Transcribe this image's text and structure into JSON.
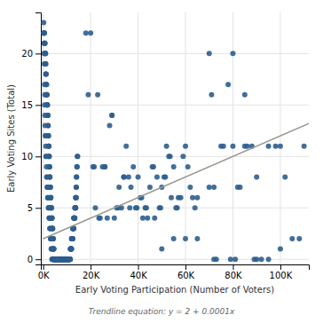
{
  "chart_data": {
    "type": "scatter",
    "xlabel": "Early Voting Participation (Number of Voters)",
    "ylabel": "Early Voting Sites (Total)",
    "annotation": "Trendline equation: y = 2 + 0.0001x",
    "xlim": [
      -1000,
      112000
    ],
    "ylim": [
      -0.5,
      24
    ],
    "xticks": [
      {
        "value": 0,
        "label": "0K"
      },
      {
        "value": 20000,
        "label": "20K"
      },
      {
        "value": 40000,
        "label": "40K"
      },
      {
        "value": 60000,
        "label": "60K"
      },
      {
        "value": 80000,
        "label": "80K"
      },
      {
        "value": 100000,
        "label": "100K"
      }
    ],
    "yticks": [
      0,
      5,
      10,
      15,
      20
    ],
    "grid": true,
    "series": [
      {
        "type": "scatter",
        "color": "#2e5e8e",
        "x": [
          300,
          400,
          500,
          500,
          600,
          700,
          700,
          800,
          800,
          900,
          900,
          1000,
          1000,
          1100,
          1100,
          1200,
          1200,
          1300,
          1300,
          1400,
          1400,
          1500,
          1500,
          1600,
          1600,
          1700,
          1700,
          1800,
          1800,
          1900,
          1900,
          2000,
          2000,
          2100,
          2100,
          2200,
          2200,
          2300,
          2300,
          2400,
          2400,
          2500,
          2500,
          2600,
          2600,
          2700,
          2700,
          2800,
          2800,
          2900,
          2900,
          3000,
          3000,
          3100,
          3100,
          3200,
          3200,
          3300,
          3300,
          3400,
          3400,
          3500,
          3500,
          3600,
          3600,
          3700,
          3700,
          3800,
          3800,
          3900,
          3900,
          4000,
          4000,
          4100,
          4100,
          4200,
          4200,
          4300,
          4300,
          4400,
          4400,
          4500,
          4500,
          4600,
          4600,
          4700,
          4700,
          4800,
          4800,
          4900,
          4900,
          5000,
          5000,
          5100,
          5100,
          5200,
          5200,
          5300,
          5300,
          5400,
          5400,
          5500,
          5500,
          5600,
          5600,
          5700,
          5700,
          5800,
          5800,
          5900,
          5900,
          6000,
          6000,
          6100,
          6100,
          6200,
          6200,
          6300,
          6300,
          6400,
          6400,
          6500,
          6500,
          6600,
          6600,
          6700,
          6700,
          6800,
          6800,
          6900,
          6900,
          7000,
          7000,
          7100,
          7100,
          7200,
          7200,
          7300,
          7300,
          7400,
          7400,
          7500,
          7500,
          7600,
          7600,
          7700,
          7700,
          7800,
          7800,
          7900,
          7900,
          8000,
          8000,
          8100,
          8100,
          8200,
          8200,
          8300,
          8300,
          8400,
          8400,
          8500,
          8500,
          8600,
          8600,
          8700,
          8700,
          8800,
          8800,
          8900,
          8900,
          9000,
          9000,
          9100,
          9100,
          9200,
          9200,
          9300,
          9300,
          9400,
          9400,
          9500,
          9500,
          9600,
          9600,
          9700,
          9700,
          9800,
          9800,
          9900,
          9900,
          10000,
          10000,
          10100,
          10100,
          10200,
          10200,
          10300,
          10300,
          10400,
          10400,
          10500,
          10500,
          10600,
          10600,
          10700,
          10700,
          10800,
          10800,
          10900,
          10900,
          11000,
          11000,
          11100,
          11100,
          11200,
          11200,
          11300,
          11300,
          11400,
          11400,
          11500,
          11500,
          11600,
          11600,
          11700,
          11700,
          11800,
          11800,
          11900,
          11900,
          12000,
          12000,
          12100,
          12100,
          12200,
          12200,
          12300,
          12300,
          12400,
          12400,
          12500,
          12500,
          12600,
          12600,
          12700,
          12700,
          12800,
          12800,
          12900,
          12900,
          13000,
          13000,
          13100,
          13100,
          13200,
          13200,
          13300,
          13300,
          13400,
          13400,
          13500,
          13500,
          13600,
          13600,
          13700,
          13700,
          13800,
          13800,
          13900,
          13900,
          14000,
          14000,
          14100,
          14200,
          14300,
          14400,
          14500,
          200,
          300,
          400,
          500,
          400,
          500,
          600,
          700,
          600,
          700,
          800,
          900,
          1000,
          1100,
          1200,
          1300,
          1400,
          1500,
          1600,
          1700,
          1800,
          1900,
          2000,
          2100,
          2200,
          2300,
          2400,
          2500,
          2600,
          2700,
          2800,
          2900,
          3000,
          3100,
          3200,
          3300,
          3400,
          3500,
          3600,
          3700,
          3800,
          3900,
          4000,
          4100,
          4200,
          4300,
          4400,
          4500,
          4600,
          4700,
          4800,
          4900,
          5000,
          5100,
          5200,
          5300,
          5400,
          5500,
          5600,
          5700,
          18000,
          20000,
          21000,
          22000,
          23000,
          24000,
          25000,
          26000,
          27000,
          28000,
          29000,
          30000,
          31000,
          32000,
          33000,
          34000,
          35000,
          36000,
          37000,
          38000,
          39000,
          40000,
          41000,
          42000,
          43000,
          44000,
          45000,
          46000,
          47000,
          48000,
          49000,
          50000,
          51000,
          52000,
          53000,
          54000,
          55000,
          56000,
          57000,
          58000,
          59000,
          60000,
          61000,
          62000,
          63000,
          64000,
          65000,
          19000,
          21500,
          23500,
          26000,
          29000,
          31500,
          34000,
          36500,
          39500,
          41500,
          43500,
          46500,
          49500,
          51500,
          53500,
          56500,
          70000,
          72000,
          75000,
          78000,
          80000,
          82000,
          85000,
          88000,
          90000,
          92000,
          95000,
          98000,
          100000,
          102000,
          105000,
          108000,
          110000,
          71000,
          73000,
          76000,
          79000,
          81000,
          83000,
          86000,
          89000,
          70000,
          72000,
          80000,
          85000,
          90000,
          95000,
          100000,
          50000,
          55000,
          60000,
          65000
        ],
        "values": [
          22,
          22,
          22,
          21,
          21,
          21,
          21,
          20,
          20,
          20,
          20,
          20,
          19,
          19,
          18,
          18,
          18,
          17,
          17,
          17,
          16,
          16,
          16,
          16,
          15,
          15,
          15,
          15,
          14,
          14,
          14,
          14,
          13,
          13,
          12,
          12,
          12,
          11,
          11,
          11,
          10,
          10,
          10,
          9,
          9,
          9,
          8,
          8,
          8,
          7,
          7,
          7,
          7,
          6,
          6,
          6,
          6,
          5,
          5,
          5,
          5,
          5,
          4,
          4,
          4,
          4,
          4,
          3,
          3,
          3,
          3,
          3,
          2,
          2,
          2,
          2,
          2,
          1,
          1,
          1,
          1,
          1,
          0,
          0,
          0,
          0,
          0,
          0,
          0,
          0,
          0,
          0,
          0,
          0,
          0,
          0,
          0,
          0,
          0,
          0,
          0,
          0,
          0,
          0,
          0,
          0,
          0,
          0,
          0,
          0,
          0,
          0,
          0,
          0,
          0,
          0,
          0,
          0,
          0,
          0,
          0,
          0,
          0,
          0,
          0,
          0,
          0,
          0,
          0,
          0,
          0,
          0,
          0,
          0,
          0,
          0,
          0,
          0,
          0,
          0,
          0,
          0,
          0,
          0,
          0,
          0,
          0,
          0,
          0,
          0,
          0,
          0,
          0,
          0,
          0,
          0,
          0,
          0,
          0,
          0,
          0,
          0,
          0,
          0,
          0,
          0,
          0,
          0,
          0,
          0,
          0,
          0,
          0,
          0,
          0,
          0,
          0,
          0,
          0,
          0,
          0,
          0,
          0,
          0,
          0,
          0,
          0,
          0,
          0,
          0,
          0,
          0,
          0,
          0,
          0,
          0,
          0,
          0,
          0,
          0,
          0,
          0,
          0,
          0,
          0,
          0,
          0,
          0,
          0,
          0,
          0,
          0,
          0,
          0,
          0,
          0,
          0,
          0,
          0,
          0,
          0,
          1,
          1,
          1,
          1,
          1,
          1,
          1,
          1,
          1,
          1,
          2,
          2,
          2,
          2,
          2,
          2,
          2,
          2,
          2,
          2,
          3,
          3,
          3,
          3,
          3,
          3,
          3,
          3,
          3,
          4,
          4,
          4,
          4,
          4,
          4,
          4,
          4,
          4,
          5,
          5,
          5,
          5,
          5,
          5,
          5,
          6,
          6,
          6,
          6,
          7,
          7,
          8,
          8,
          9,
          9,
          10,
          10,
          23,
          22,
          22,
          21,
          20,
          19,
          17,
          16,
          15,
          14,
          13,
          12,
          12,
          11,
          10,
          10,
          9,
          8,
          8,
          7,
          7,
          6,
          6,
          6,
          5,
          5,
          5,
          4,
          4,
          4,
          3,
          3,
          3,
          2,
          2,
          2,
          1,
          1,
          1,
          0,
          0,
          0,
          0,
          0,
          0,
          0,
          0,
          0,
          0,
          0,
          0,
          0,
          0,
          0,
          0,
          0,
          0,
          0,
          0,
          0,
          22,
          22,
          9,
          5,
          16,
          4,
          9,
          9,
          4,
          13,
          14,
          4,
          5,
          7,
          5,
          8,
          11,
          8,
          7,
          9,
          5,
          8,
          6,
          4,
          5,
          4,
          7,
          9,
          4,
          8,
          5,
          7,
          8,
          11,
          10,
          6,
          9,
          5,
          6,
          6,
          10,
          11,
          9,
          7,
          6,
          5,
          6,
          16,
          9,
          4,
          9,
          14,
          5,
          8,
          5,
          5,
          6,
          5,
          9,
          5,
          8,
          10,
          5,
          20,
          7,
          11,
          17,
          11,
          7,
          11,
          11,
          0,
          0,
          11,
          11,
          11,
          8,
          2,
          2,
          11,
          16,
          0,
          11,
          0,
          0,
          7,
          11,
          0,
          7,
          0,
          20,
          16,
          8,
          0,
          1,
          1,
          2,
          2,
          2
        ]
      },
      {
        "type": "line",
        "color": "#999990",
        "x": [
          0,
          112000
        ],
        "values": [
          2,
          13.2
        ]
      }
    ]
  }
}
